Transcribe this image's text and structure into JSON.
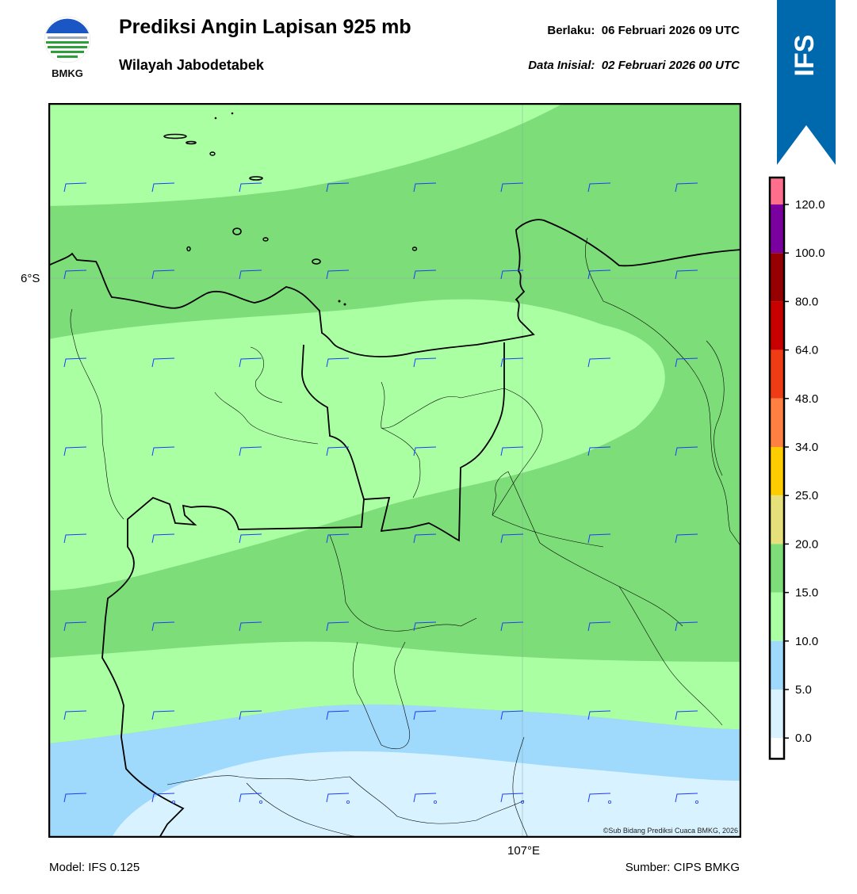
{
  "header": {
    "title": "Prediksi Angin Lapisan 925 mb",
    "subtitle": "Wilayah Jabodetabek",
    "valid_label": "Berlaku:",
    "valid_time": "06 Februari 2026 09 UTC",
    "init_label": "Data Inisial:",
    "init_time": "02 Februari 2026 00 UTC"
  },
  "logo": {
    "text": "BMKG",
    "icon": "bmkg-logo-icon"
  },
  "ribbon": {
    "text": "IFS",
    "color": "#0068ad"
  },
  "map": {
    "lat_label": "6°S",
    "lon_label": "107°E",
    "copyright": "©Sub Bidang Prediksi Cuaca BMKG, 2026",
    "barb_color": "#1f3bff",
    "boundary_color": "#000000"
  },
  "colorbar": {
    "ticks": [
      "120.0",
      "100.0",
      "80.0",
      "64.0",
      "48.0",
      "34.0",
      "25.0",
      "20.0",
      "15.0",
      "10.0",
      "5.0",
      "0.0"
    ],
    "colors": [
      "#ffffff",
      "#d8f3ff",
      "#9fd9fb",
      "#abffa3",
      "#7ddd78",
      "#e6e07a",
      "#ffcc00",
      "#ff8040",
      "#f03c14",
      "#c80000",
      "#960000",
      "#7a00a0",
      "#ff6e8c"
    ]
  },
  "footer": {
    "model": "Model: IFS 0.125",
    "source": "Sumber: CIPS BMKG"
  }
}
